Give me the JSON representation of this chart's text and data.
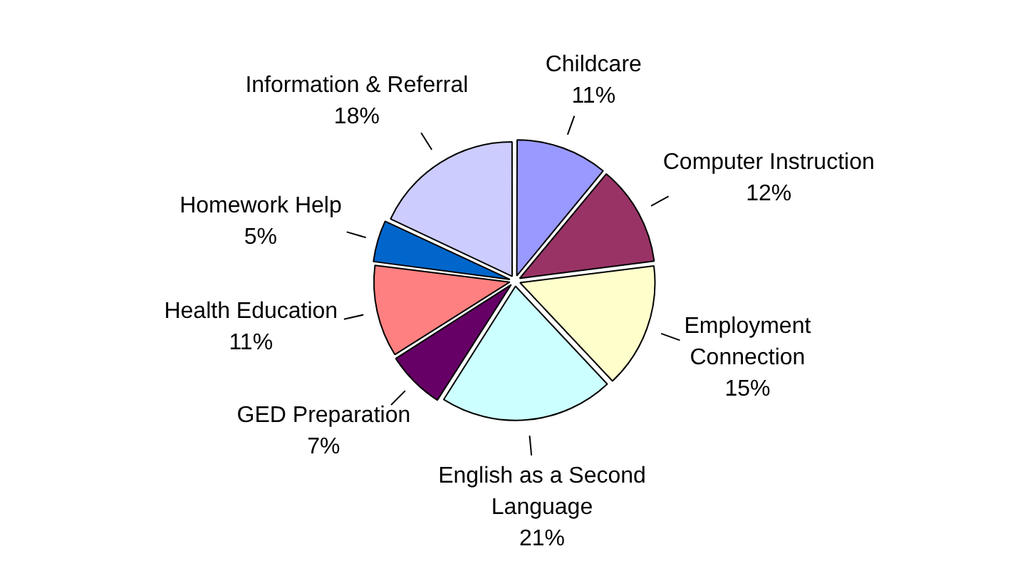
{
  "chart_data": {
    "type": "pie",
    "categories": [
      "Childcare",
      "Computer Instruction",
      "Employment Connection",
      "English as a Second Language",
      "GED Preparation",
      "Health Education",
      "Homework Help",
      "Information & Referral"
    ],
    "values": [
      11,
      12,
      15,
      21,
      7,
      11,
      5,
      18
    ],
    "value_labels": [
      "11%",
      "12%",
      "15%",
      "21%",
      "7%",
      "11%",
      "5%",
      "18%"
    ],
    "colors": [
      "#9999ff",
      "#993366",
      "#ffffcc",
      "#ccffff",
      "#660066",
      "#ff8080",
      "#0066cc",
      "#ccccff"
    ],
    "legend": false
  }
}
